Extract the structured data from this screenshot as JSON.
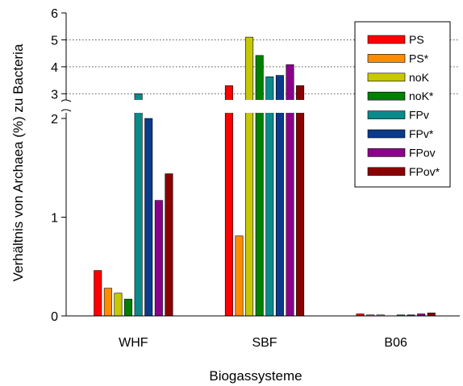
{
  "chart_data": {
    "type": "bar",
    "title": "",
    "xlabel": "Biogassysteme",
    "ylabel": "Verhältnis von Archaea (%) zu Bacteria",
    "categories": [
      "WHF",
      "SBF",
      "B06"
    ],
    "y_axis_break": [
      2,
      2.8
    ],
    "y_ticks_lower": [
      "0",
      "1",
      "2"
    ],
    "y_ticks_upper": [
      "3",
      "4",
      "5",
      "6"
    ],
    "grid": "dotted horizontal lines in upper segment",
    "legend_position": "top-right",
    "series": [
      {
        "name": "PS",
        "color": "#ff0000",
        "values": [
          0.46,
          3.3,
          0.02
        ]
      },
      {
        "name": "PS*",
        "color": "#ff8c00",
        "values": [
          0.28,
          0.81,
          0.01
        ]
      },
      {
        "name": "noK",
        "color": "#c8c800",
        "values": [
          0.23,
          5.1,
          0.01
        ]
      },
      {
        "name": "noK*",
        "color": "#008000",
        "values": [
          0.17,
          4.42,
          0.0
        ]
      },
      {
        "name": "FPv",
        "color": "#0a8a8a",
        "values": [
          3.0,
          3.63,
          0.01
        ]
      },
      {
        "name": "FPv*",
        "color": "#0a3a8a",
        "values": [
          2.75,
          3.68,
          0.01
        ]
      },
      {
        "name": "FPov",
        "color": "#8b008b",
        "values": [
          1.17,
          4.08,
          0.02
        ]
      },
      {
        "name": "FPov*",
        "color": "#8b0000",
        "values": [
          1.44,
          3.3,
          0.03
        ]
      }
    ]
  }
}
